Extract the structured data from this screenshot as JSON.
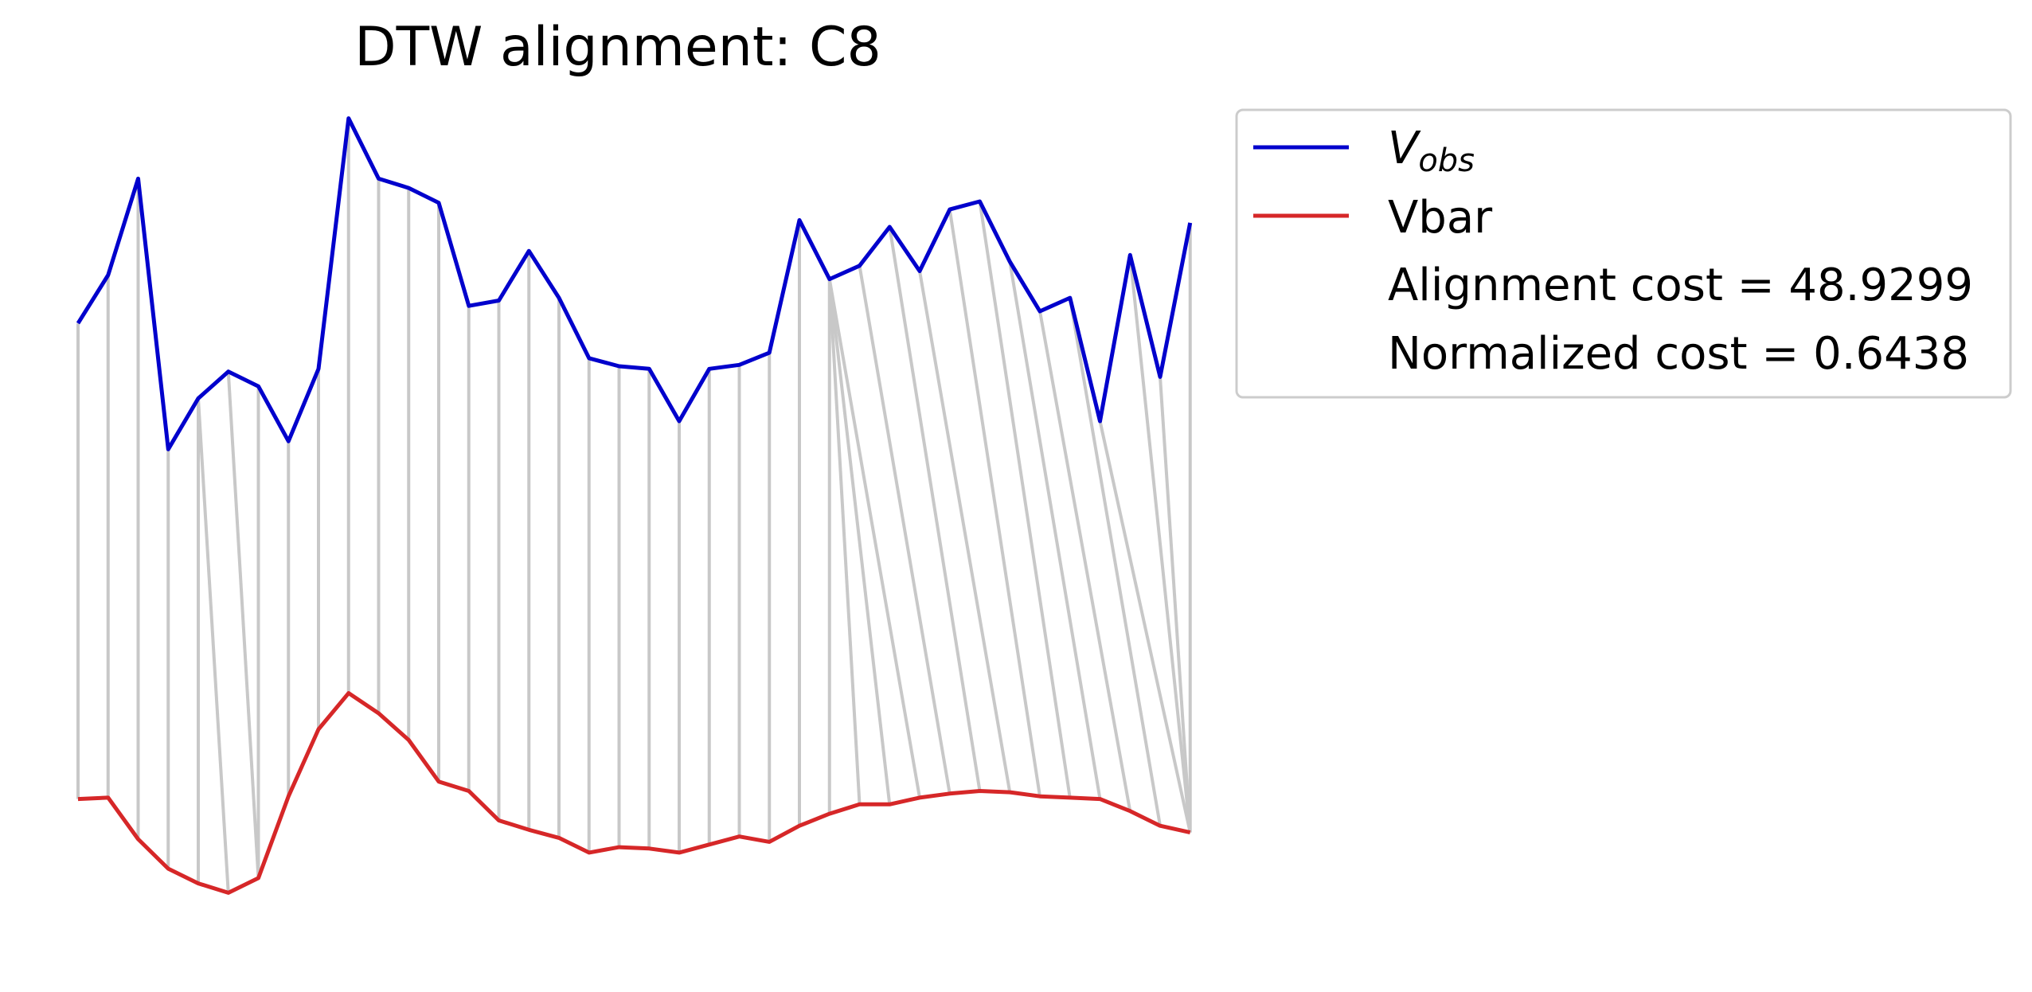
{
  "chart_data": {
    "type": "line",
    "title": "DTW alignment: C8",
    "x_range": [
      0,
      36
    ],
    "axes_visible": false,
    "grid": false,
    "legend": {
      "placement": "outside-right"
    },
    "series": [
      {
        "name": "V_obs",
        "legend_main": "V",
        "legend_sub": "obs",
        "color": "#0000cc",
        "values": [
          3.18,
          3.54,
          4.26,
          2.24,
          2.62,
          2.82,
          2.71,
          2.3,
          2.84,
          4.71,
          4.26,
          4.19,
          4.08,
          3.31,
          3.35,
          3.72,
          3.37,
          2.92,
          2.86,
          2.84,
          2.45,
          2.84,
          2.87,
          2.96,
          3.95,
          3.51,
          3.61,
          3.9,
          3.57,
          4.03,
          4.09,
          3.64,
          3.27,
          3.37,
          2.45,
          3.69,
          2.78,
          3.93
        ]
      },
      {
        "name": "Vbar",
        "color": "#d62728",
        "values": [
          -0.37,
          -0.36,
          -0.67,
          -0.89,
          -1.0,
          -1.07,
          -0.96,
          -0.35,
          0.15,
          0.42,
          0.27,
          0.07,
          -0.24,
          -0.31,
          -0.53,
          -0.6,
          -0.66,
          -0.77,
          -0.73,
          -0.74,
          -0.77,
          -0.71,
          -0.65,
          -0.69,
          -0.57,
          -0.48,
          -0.41,
          -0.41,
          -0.36,
          -0.33,
          -0.31,
          -0.32,
          -0.35,
          -0.36,
          -0.37,
          -0.46,
          -0.57,
          -0.62
        ]
      }
    ],
    "alignment_path": [
      [
        0,
        0
      ],
      [
        1,
        1
      ],
      [
        2,
        2
      ],
      [
        3,
        3
      ],
      [
        4,
        4
      ],
      [
        4,
        5
      ],
      [
        5,
        6
      ],
      [
        6,
        6
      ],
      [
        7,
        7
      ],
      [
        8,
        8
      ],
      [
        9,
        9
      ],
      [
        10,
        10
      ],
      [
        11,
        11
      ],
      [
        12,
        12
      ],
      [
        13,
        13
      ],
      [
        14,
        14
      ],
      [
        15,
        15
      ],
      [
        16,
        16
      ],
      [
        17,
        17
      ],
      [
        18,
        18
      ],
      [
        19,
        19
      ],
      [
        20,
        20
      ],
      [
        21,
        21
      ],
      [
        22,
        22
      ],
      [
        23,
        23
      ],
      [
        24,
        24
      ],
      [
        25,
        25
      ],
      [
        25,
        26
      ],
      [
        25,
        27
      ],
      [
        25,
        28
      ],
      [
        26,
        29
      ],
      [
        27,
        30
      ],
      [
        28,
        31
      ],
      [
        29,
        32
      ],
      [
        30,
        33
      ],
      [
        31,
        34
      ],
      [
        32,
        35
      ],
      [
        33,
        36
      ],
      [
        34,
        37
      ],
      [
        35,
        37
      ],
      [
        36,
        37
      ],
      [
        37,
        37
      ]
    ],
    "alignment_color": "#c8c8c8",
    "annotations": [
      "Alignment cost = 48.9299",
      "Normalized cost = 0.6438"
    ]
  }
}
